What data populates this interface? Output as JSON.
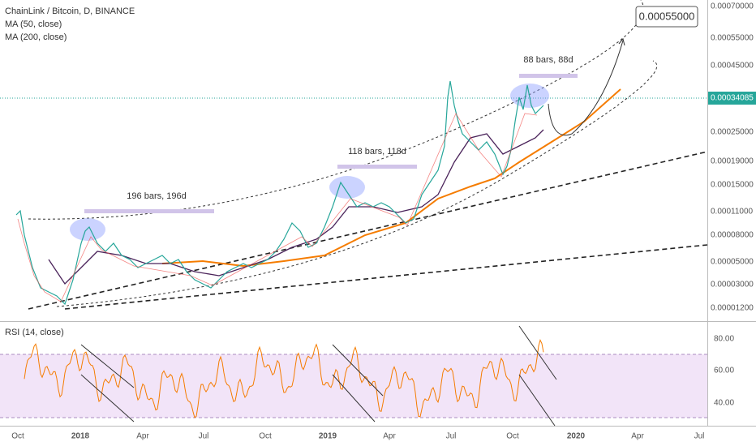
{
  "header": {
    "symbol": "ChainLink / Bitcoin, D, BINANCE",
    "ma50": "MA (50, close)",
    "ma200": "MA (200, close)",
    "rsi": "RSI (14, close)"
  },
  "price_axis": [
    "0.00070000",
    "0.00055000",
    "0.00045000",
    "0.00025000",
    "0.00019000",
    "0.00015000",
    "0.00011000",
    "0.00008000",
    "0.00005000",
    "0.00003000",
    "0.00001200"
  ],
  "last_price": "0.00034085",
  "target": "0.00055000",
  "rsi_axis": [
    "80.00",
    "60.00",
    "40.00"
  ],
  "time_axis": [
    "Oct",
    "2018",
    "Apr",
    "Jul",
    "Oct",
    "2019",
    "Apr",
    "Jul",
    "Oct",
    "2020",
    "Apr",
    "Jul"
  ],
  "annotations": [
    "196 bars, 196d",
    "118 bars, 118d",
    "88 bars, 88d"
  ]
}
